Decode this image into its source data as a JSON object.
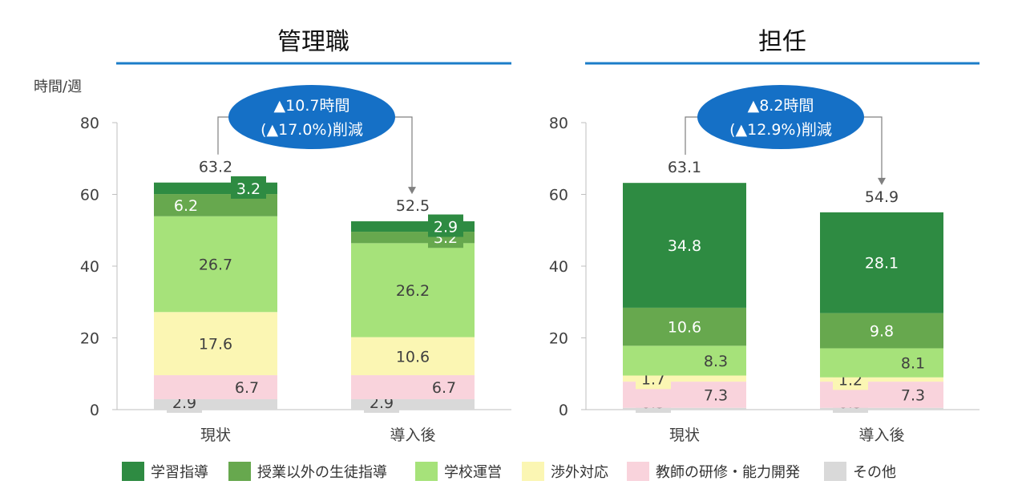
{
  "y_unit_label": "時間/週",
  "colors": {
    "学習指導": "#2e8b42",
    "授業以外の生徒指導": "#67a84e",
    "学校運営": "#a6e27a",
    "渉外対応": "#fbf6b3",
    "教師の研修・能力開発": "#f9d3dc",
    "その他": "#d9d9d9",
    "title_rule": "#1b7dc8",
    "callout": "#1570c6"
  },
  "legend": [
    {
      "label": "学習指導",
      "color": "#2e8b42"
    },
    {
      "label": "授業以外の生徒指導",
      "color": "#67a84e"
    },
    {
      "label": "学校運営",
      "color": "#a6e27a"
    },
    {
      "label": "渉外対応",
      "color": "#fbf6b3"
    },
    {
      "label": "教師の研修・能力開発",
      "color": "#f9d3dc"
    },
    {
      "label": "その他",
      "color": "#d9d9d9"
    }
  ],
  "chart_data": [
    {
      "type": "bar",
      "stacked": true,
      "title": "管理職",
      "ylabel": "時間/週",
      "ylim": [
        0,
        80
      ],
      "yticks": [
        0,
        20,
        40,
        60,
        80
      ],
      "categories": [
        "現状",
        "導入後"
      ],
      "totals": [
        "63.2",
        "52.5"
      ],
      "callout": [
        "▲10.7時間",
        "(▲17.0%)削減"
      ],
      "series": [
        {
          "name": "その他",
          "values": [
            2.9,
            2.9
          ]
        },
        {
          "name": "教師の研修・能力開発",
          "values": [
            6.7,
            6.7
          ]
        },
        {
          "name": "渉外対応",
          "values": [
            17.6,
            10.6
          ]
        },
        {
          "name": "学校運営",
          "values": [
            26.7,
            26.2
          ]
        },
        {
          "name": "授業以外の生徒指導",
          "values": [
            6.2,
            3.2
          ]
        },
        {
          "name": "学習指導",
          "values": [
            3.2,
            2.9
          ]
        }
      ]
    },
    {
      "type": "bar",
      "stacked": true,
      "title": "担任",
      "ylim": [
        0,
        80
      ],
      "yticks": [
        0,
        20,
        40,
        60,
        80
      ],
      "categories": [
        "現状",
        "導入後"
      ],
      "totals": [
        "63.1",
        "54.9"
      ],
      "callout": [
        "▲8.2時間",
        "(▲12.9%)削減"
      ],
      "series": [
        {
          "name": "その他",
          "values": [
            0.5,
            0.5
          ]
        },
        {
          "name": "教師の研修・能力開発",
          "values": [
            7.3,
            7.3
          ]
        },
        {
          "name": "渉外対応",
          "values": [
            1.7,
            1.2
          ]
        },
        {
          "name": "学校運営",
          "values": [
            8.3,
            8.1
          ]
        },
        {
          "name": "授業以外の生徒指導",
          "values": [
            10.6,
            9.8
          ]
        },
        {
          "name": "学習指導",
          "values": [
            34.8,
            28.1
          ]
        }
      ]
    }
  ]
}
